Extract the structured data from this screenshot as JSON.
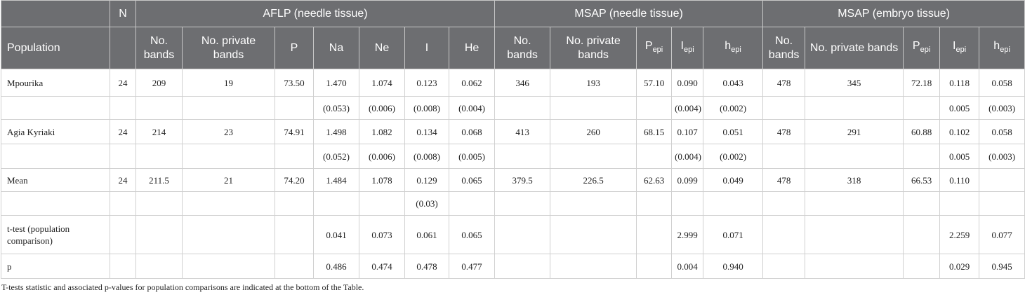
{
  "table": {
    "group_header": [
      null,
      "N",
      "AFLP (needle tissue)",
      "MSAP (needle tissue)",
      "MSAP (embryo tissue)"
    ],
    "column_header": [
      {
        "text": "Population"
      },
      null,
      {
        "text": "No. bands"
      },
      {
        "text": "No. private bands"
      },
      {
        "text": "P"
      },
      {
        "text": "Na"
      },
      {
        "text": "Ne"
      },
      {
        "text": "I"
      },
      {
        "text": "He"
      },
      {
        "text": "No. bands"
      },
      {
        "text": "No. private bands"
      },
      {
        "text": "P",
        "sub": "epi"
      },
      {
        "text": "I",
        "sub": "epi"
      },
      {
        "text": "h",
        "sub": "epi"
      },
      {
        "text": "No. bands"
      },
      {
        "text": "No. private bands"
      },
      {
        "text": "P",
        "sub": "epi"
      },
      {
        "text": "I",
        "sub": "epi"
      },
      {
        "text": "h",
        "sub": "epi"
      }
    ],
    "rows": [
      [
        "Mpourika",
        "24",
        "209",
        "19",
        "73.50",
        "1.470",
        "1.074",
        "0.123",
        "0.062",
        "346",
        "193",
        "57.10",
        "0.090",
        "0.043",
        "478",
        "345",
        "72.18",
        "0.118",
        "0.058"
      ],
      [
        null,
        null,
        null,
        null,
        null,
        "(0.053)",
        "(0.006)",
        "(0.008)",
        "(0.004)",
        null,
        null,
        null,
        "(0.004)",
        "(0.002)",
        null,
        null,
        null,
        "0.005",
        "(0.003)"
      ],
      [
        "Agia Kyriaki",
        "24",
        "214",
        "23",
        "74.91",
        "1.498",
        "1.082",
        "0.134",
        "0.068",
        "413",
        "260",
        "68.15",
        "0.107",
        "0.051",
        "478",
        "291",
        "60.88",
        "0.102",
        "0.058"
      ],
      [
        null,
        null,
        null,
        null,
        null,
        "(0.052)",
        "(0.006)",
        "(0.008)",
        "(0.005)",
        null,
        null,
        null,
        "(0.004)",
        "(0.002)",
        null,
        null,
        null,
        "0.005",
        "(0.003)"
      ],
      [
        "Mean",
        "24",
        "211.5",
        "21",
        "74.20",
        "1.484",
        "1.078",
        "0.129",
        "0.065",
        "379.5",
        "226.5",
        "62.63",
        "0.099",
        "0.049",
        "478",
        "318",
        "66.53",
        "0.110",
        null
      ],
      [
        null,
        null,
        null,
        null,
        null,
        null,
        null,
        "(0.03)",
        null,
        null,
        null,
        null,
        null,
        null,
        null,
        null,
        null,
        null,
        null
      ],
      [
        "t-test (population comparison)",
        null,
        null,
        null,
        null,
        "0.041",
        "0.073",
        "0.061",
        "0.065",
        null,
        null,
        null,
        "2.999",
        "0.071",
        null,
        null,
        null,
        "2.259",
        "0.077"
      ],
      [
        "p",
        null,
        null,
        null,
        null,
        "0.486",
        "0.474",
        "0.478",
        "0.477",
        null,
        null,
        null,
        "0.004",
        "0.940",
        null,
        null,
        null,
        "0.029",
        "0.945"
      ]
    ],
    "footnote": "T-tests statistic and associated p-values for population comparisons are indicated at the bottom of the Table."
  }
}
